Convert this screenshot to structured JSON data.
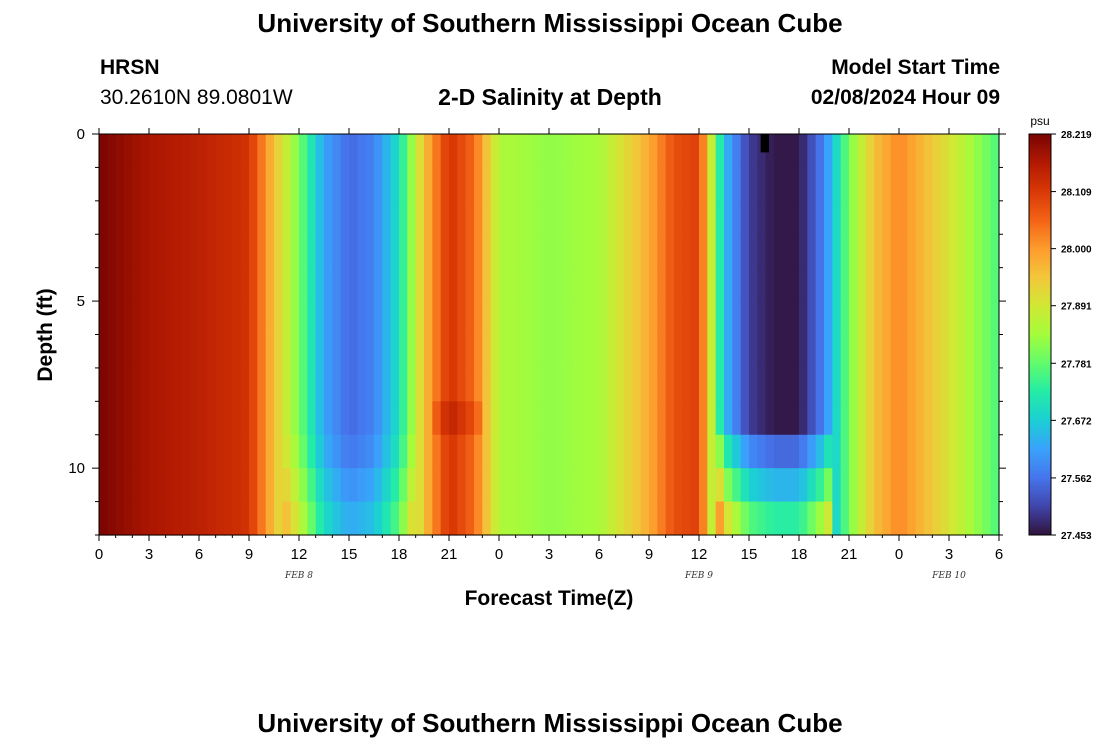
{
  "header": {
    "title": "University of Southern Mississippi Ocean Cube",
    "station": "HRSN",
    "coords": "30.2610N  89.0801W",
    "subtitle": "2-D Salinity at Depth",
    "model_label": "Model Start Time",
    "model_time": "02/08/2024 Hour 09"
  },
  "footer": {
    "title": "University of Southern Mississippi Ocean Cube"
  },
  "colors": {
    "stops": [
      "#30123b",
      "#4145ab",
      "#4675ed",
      "#39a2fc",
      "#1bcfd4",
      "#24eca6",
      "#61fc6c",
      "#a4fc3b",
      "#d1e834",
      "#f3c63a",
      "#fe9b2d",
      "#f36315",
      "#d93806",
      "#b11901",
      "#7a0402"
    ]
  },
  "chart_data": {
    "type": "heatmap",
    "title": "2-D Salinity at Depth",
    "xlabel": "Forecast Time(Z)",
    "ylabel": "Depth (ft)",
    "x_range_hours": [
      0,
      54
    ],
    "y_range_ft": [
      0,
      12
    ],
    "x_tick_labels": [
      "0",
      "3",
      "6",
      "9",
      "12",
      "15",
      "18",
      "21",
      "0",
      "3",
      "6",
      "9",
      "12",
      "15",
      "18",
      "21",
      "0",
      "3",
      "6"
    ],
    "y_tick_labels": [
      "0",
      "5",
      "10"
    ],
    "date_labels": [
      {
        "hour": 12,
        "label": "FEB 8"
      },
      {
        "hour": 36,
        "label": "FEB 9"
      },
      {
        "hour": 51,
        "label": "FEB 10"
      }
    ],
    "colorbar": {
      "unit": "psu",
      "min": 27.453,
      "max": 28.219,
      "tick_labels": [
        "28.219",
        "28.109",
        "28.000",
        "27.891",
        "27.781",
        "27.672",
        "27.562",
        "27.453"
      ]
    },
    "surface_salinity_series": {
      "hours": [
        0,
        3,
        6,
        9,
        10.5,
        12,
        13.5,
        15,
        16.5,
        18,
        19.5,
        21,
        22.5,
        24,
        27,
        30,
        33,
        34.5,
        36,
        37.5,
        39,
        40.5,
        42,
        43.5,
        45,
        46.5,
        48,
        51,
        54
      ],
      "values": [
        28.219,
        28.17,
        28.15,
        28.12,
        27.95,
        27.8,
        27.62,
        27.55,
        27.58,
        27.7,
        27.95,
        28.12,
        28.05,
        27.85,
        27.82,
        27.84,
        27.98,
        28.08,
        28.1,
        27.65,
        27.5,
        27.46,
        27.46,
        27.58,
        27.8,
        27.95,
        28.02,
        27.9,
        27.76
      ]
    }
  }
}
